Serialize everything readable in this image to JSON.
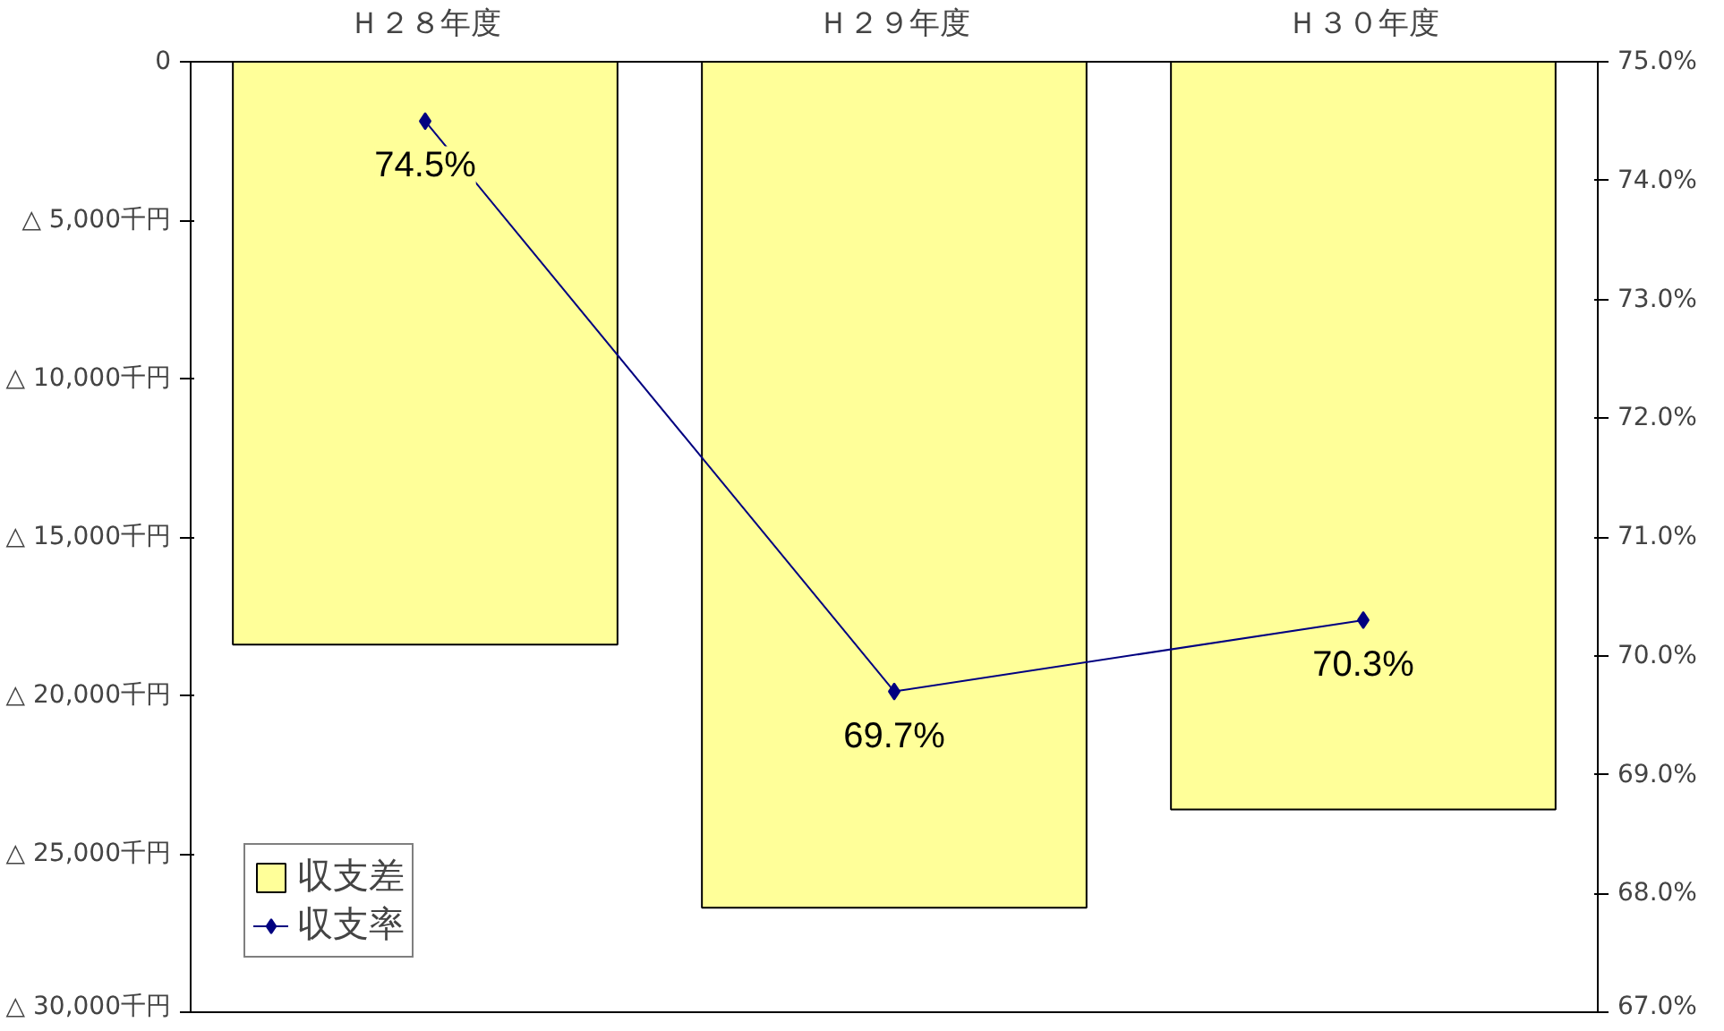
{
  "chart_data": {
    "type": "bar",
    "categories": [
      "Ｈ２８年度",
      "Ｈ２９年度",
      "Ｈ３０年度"
    ],
    "series": [
      {
        "name": "収支差",
        "color": "#ffff99",
        "values": [
          -18400,
          -26700,
          -23600
        ]
      },
      {
        "name": "収支率",
        "type": "line",
        "axis": "y2",
        "color": "#000080",
        "marker": "diamond",
        "values": [
          74.5,
          69.7,
          70.3
        ],
        "value_labels": [
          "74.5%",
          "69.7%",
          "70.3%"
        ]
      }
    ],
    "ylim": [
      -30000,
      0
    ],
    "yticks": [
      0,
      {
        "value": -5000,
        "label": "△ 5,000千円"
      },
      {
        "value": -10000,
        "label": "△ 10,000千円"
      },
      {
        "value": -15000,
        "label": "△ 15,000千円"
      },
      {
        "value": -20000,
        "label": "△ 20,000千円"
      },
      {
        "value": -25000,
        "label": "△ 25,000千円"
      },
      {
        "value": -30000,
        "label": "△ 30,000千円"
      }
    ],
    "y2lim": [
      67,
      75
    ],
    "y2ticks": [
      {
        "value": 67,
        "label": "67.0%"
      },
      {
        "value": 68,
        "label": "68.0%"
      },
      {
        "value": 69,
        "label": "69.0%"
      },
      {
        "value": 70,
        "label": "70.0%"
      },
      {
        "value": 71,
        "label": "71.0%"
      },
      {
        "value": 72,
        "label": "72.0%"
      },
      {
        "value": 73,
        "label": "73.0%"
      },
      {
        "value": 74,
        "label": "74.0%"
      },
      {
        "value": 75,
        "label": "75.0%"
      }
    ],
    "legend": "bottom left",
    "grid": false
  }
}
